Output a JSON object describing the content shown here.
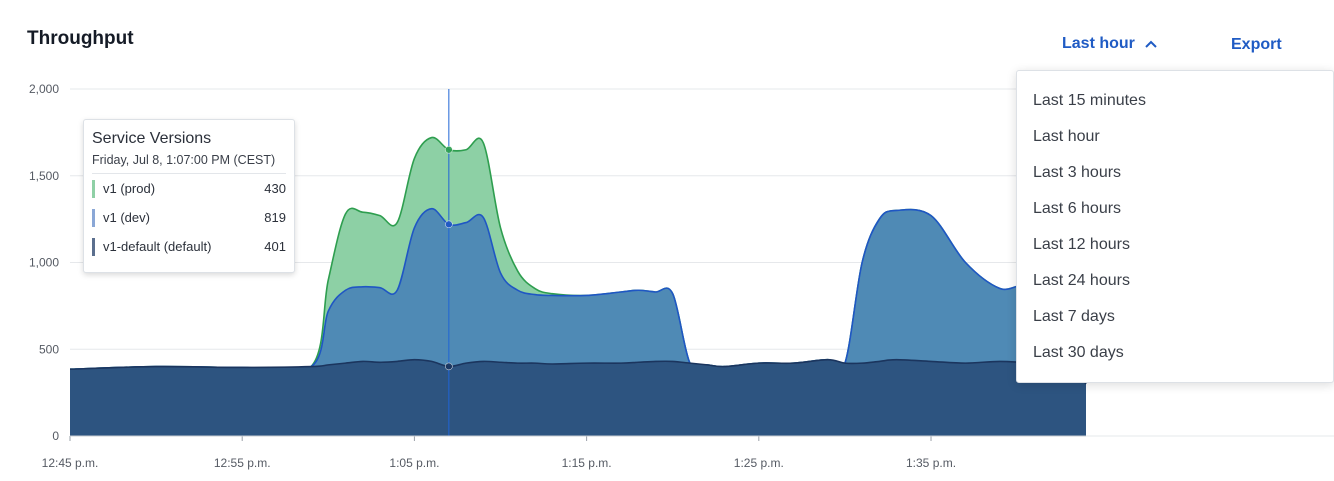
{
  "header": {
    "title": "Throughput",
    "range_label": "Last hour",
    "export_label": "Export"
  },
  "dropdown": {
    "options": [
      "Last 15 minutes",
      "Last hour",
      "Last 3 hours",
      "Last 6 hours",
      "Last 12 hours",
      "Last 24 hours",
      "Last 7 days",
      "Last 30 days"
    ]
  },
  "tooltip": {
    "title": "Service Versions",
    "date": "Friday, Jul 8, 1:07:00 PM (CEST)",
    "rows": [
      {
        "name": "v1 (prod)",
        "value": "430",
        "color": "#8fd0a6"
      },
      {
        "name": "v1 (dev)",
        "value": "819",
        "color": "#8aa7d6"
      },
      {
        "name": "v1-default (default)",
        "value": "401",
        "color": "#5b6f8e"
      }
    ]
  },
  "chart_data": {
    "type": "area",
    "stacked": false,
    "xlabel": "",
    "ylabel": "",
    "y_ticks": [
      0,
      500,
      1000,
      1500,
      2000
    ],
    "y_tick_labels": [
      "0",
      "500",
      "1,000",
      "1,500",
      "2,000"
    ],
    "ylim": [
      0,
      2000
    ],
    "x_tick_labels": [
      "12:45 p.m.",
      "12:55 p.m.",
      "1:05 p.m.",
      "1:15 p.m.",
      "1:25 p.m.",
      "1:35 p.m."
    ],
    "x_tick_minutes": [
      0,
      10,
      20,
      30,
      40,
      50
    ],
    "xlim": [
      0,
      59
    ],
    "hover_minute": 22,
    "grid": true,
    "colors": {
      "prod_fill": "#8dd0a5",
      "prod_line": "#2e9e4f",
      "dev_fill": "#4f8ab5",
      "dev_line": "#1f56c4",
      "default_fill": "#2d5480",
      "default_line": "#1b355e",
      "cursor": "#1f64d6"
    },
    "series": [
      {
        "name": "v1 (prod)",
        "x": [
          0,
          5,
          10,
          14,
          15,
          16,
          17,
          18,
          19,
          20,
          21,
          22,
          23,
          24,
          25,
          26,
          27,
          28,
          30,
          32,
          33,
          34,
          35,
          36,
          37,
          38,
          40,
          42,
          44,
          45,
          46,
          47,
          48,
          50,
          52,
          54,
          56,
          58,
          59
        ],
        "values": [
          385,
          400,
          395,
          400,
          900,
          1280,
          1290,
          1270,
          1230,
          1600,
          1720,
          1650,
          1650,
          1690,
          1200,
          950,
          850,
          820,
          810,
          830,
          840,
          830,
          820,
          420,
          410,
          400,
          420,
          420,
          440,
          420,
          1000,
          1250,
          1300,
          1270,
          1000,
          850,
          840,
          400,
          300
        ]
      },
      {
        "name": "v1 (dev)",
        "x": [
          0,
          5,
          10,
          14,
          15,
          16,
          17,
          18,
          19,
          20,
          21,
          22,
          23,
          24,
          25,
          26,
          27,
          28,
          30,
          32,
          33,
          34,
          35,
          36,
          37,
          38,
          40,
          42,
          44,
          45,
          46,
          47,
          48,
          50,
          52,
          54,
          56,
          58,
          59
        ],
        "values": [
          385,
          400,
          395,
          400,
          720,
          840,
          860,
          855,
          840,
          1200,
          1310,
          1220,
          1230,
          1260,
          940,
          840,
          815,
          810,
          810,
          830,
          840,
          830,
          820,
          420,
          410,
          400,
          420,
          420,
          440,
          420,
          1000,
          1250,
          1300,
          1270,
          1000,
          850,
          840,
          400,
          300
        ]
      },
      {
        "name": "v1-default (default)",
        "x": [
          0,
          5,
          10,
          14,
          15,
          16,
          17,
          18,
          19,
          20,
          21,
          22,
          23,
          24,
          25,
          26,
          27,
          28,
          30,
          32,
          33,
          34,
          35,
          36,
          37,
          38,
          40,
          42,
          44,
          45,
          46,
          47,
          48,
          50,
          52,
          54,
          56,
          58,
          59
        ],
        "values": [
          385,
          400,
          395,
          400,
          410,
          420,
          430,
          425,
          430,
          440,
          430,
          401,
          420,
          430,
          425,
          420,
          420,
          415,
          420,
          420,
          425,
          430,
          430,
          420,
          410,
          400,
          420,
          420,
          440,
          420,
          420,
          430,
          440,
          430,
          420,
          430,
          420,
          410,
          300
        ]
      }
    ]
  }
}
